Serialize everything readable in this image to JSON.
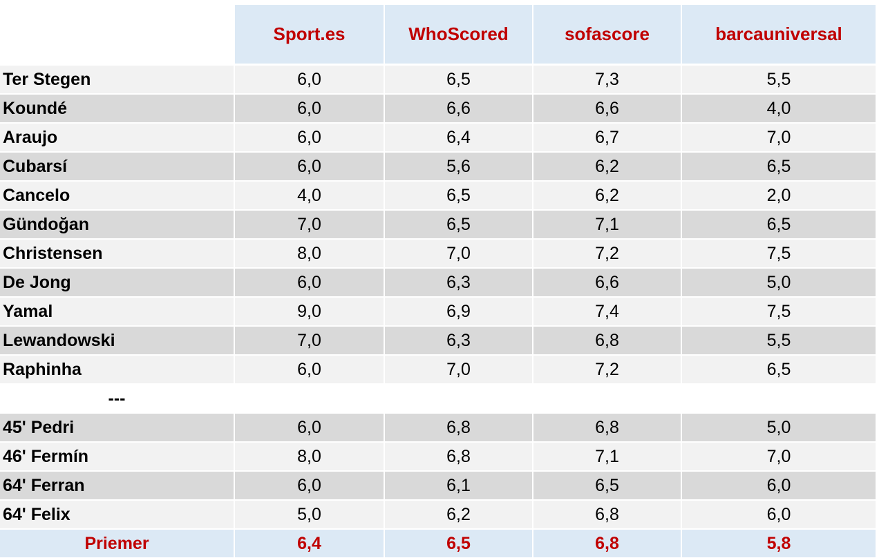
{
  "table": {
    "columns": [
      "Sport.es",
      "WhoScored",
      "sofascore",
      "barcauniversal"
    ],
    "rows": [
      [
        "Ter Stegen",
        "6,0",
        "6,5",
        "7,3",
        "5,5"
      ],
      [
        "Koundé",
        "6,0",
        "6,6",
        "6,6",
        "4,0"
      ],
      [
        "Araujo",
        "6,0",
        "6,4",
        "6,7",
        "7,0"
      ],
      [
        "Cubarsí",
        "6,0",
        "5,6",
        "6,2",
        "6,5"
      ],
      [
        "Cancelo",
        "4,0",
        "6,5",
        "6,2",
        "2,0"
      ],
      [
        "Gündoğan",
        "7,0",
        "6,5",
        "7,1",
        "6,5"
      ],
      [
        "Christensen",
        "8,0",
        "7,0",
        "7,2",
        "7,5"
      ],
      [
        "De Jong",
        "6,0",
        "6,3",
        "6,6",
        "5,0"
      ],
      [
        "Yamal",
        "9,0",
        "6,9",
        "7,4",
        "7,5"
      ],
      [
        "Lewandowski",
        "7,0",
        "6,3",
        "6,8",
        "5,5"
      ],
      [
        "Raphinha",
        "6,0",
        "7,0",
        "7,2",
        "6,5"
      ]
    ],
    "separator": "---",
    "subs": [
      [
        "45' Pedri",
        "6,0",
        "6,8",
        "6,8",
        "5,0"
      ],
      [
        "46' Fermín",
        "8,0",
        "6,8",
        "7,1",
        "7,0"
      ],
      [
        "64' Ferran",
        "6,0",
        "6,1",
        "6,5",
        "6,0"
      ],
      [
        "64' Felix",
        "5,0",
        "6,2",
        "6,8",
        "6,0"
      ]
    ],
    "summary": [
      "Priemer",
      "6,4",
      "6,5",
      "6,8",
      "5,8"
    ]
  }
}
